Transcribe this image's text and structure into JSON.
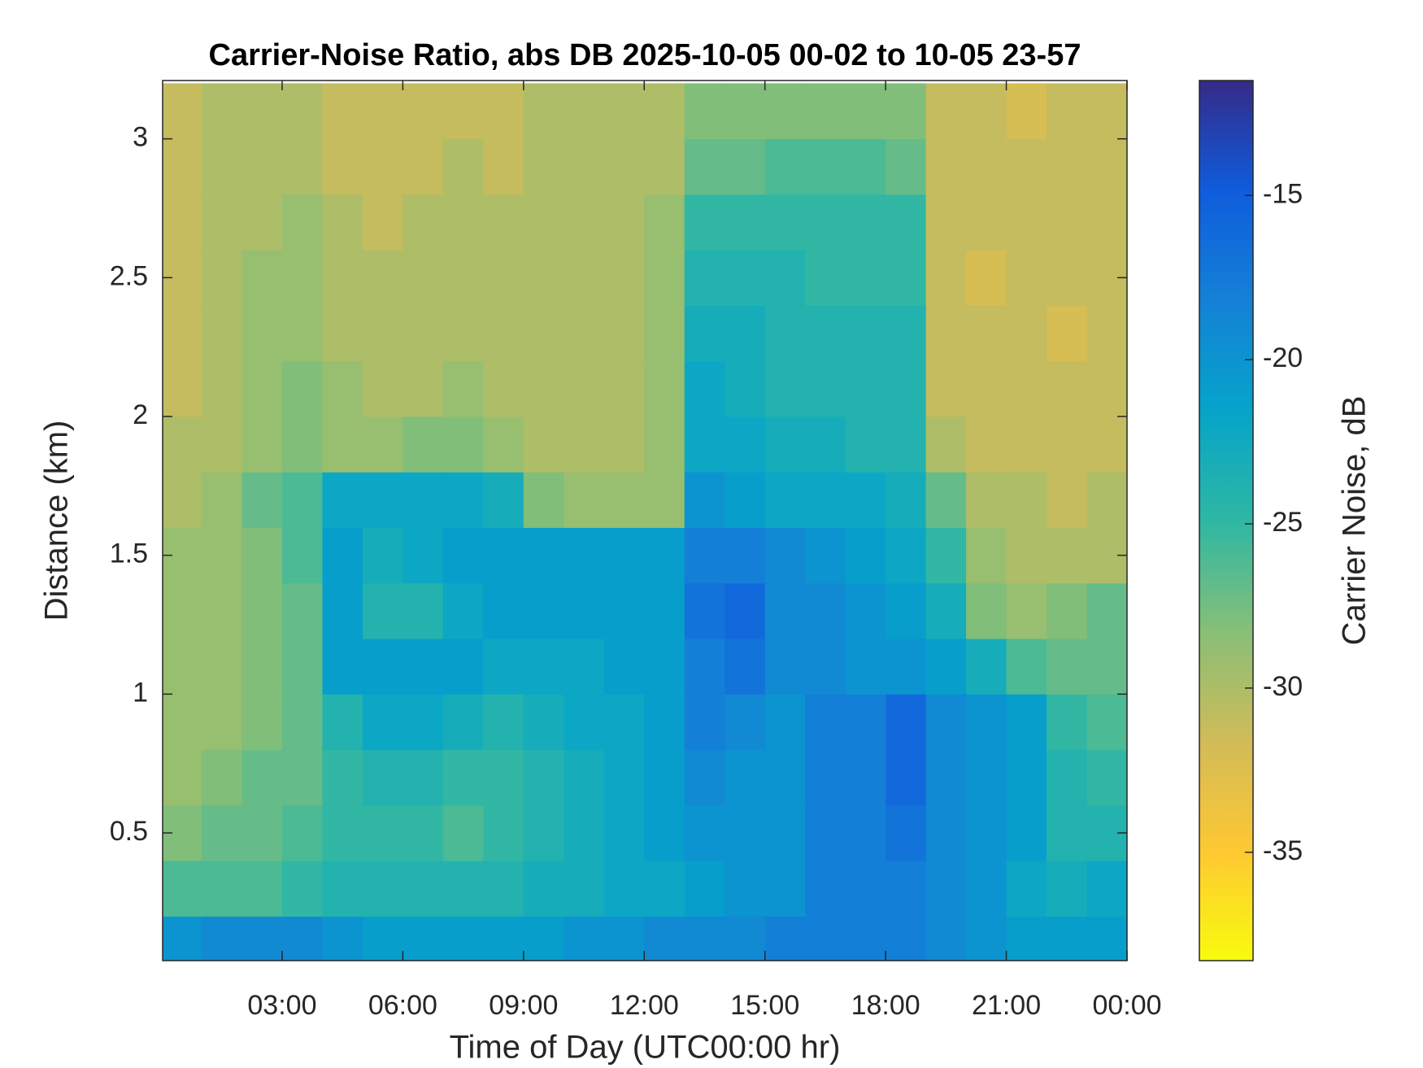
{
  "chart_data": {
    "type": "heatmap",
    "title": "Carrier-Noise Ratio, abs DB 2025-10-05 00-02 to 10-05 23-57",
    "x_label": "Time of Day (UTC00:00 hr)",
    "y_label": "Distance (km)",
    "colorbar_label": "Carrier Noise, dB",
    "colormap": "parula",
    "colormap_reversed": true,
    "clim": [
      -38.3,
      -11.5
    ],
    "cticks": [
      -15,
      -20,
      -25,
      -30,
      -35
    ],
    "xlim": [
      0.03,
      24
    ],
    "xticks": [
      {
        "value": 3,
        "label": "03:00"
      },
      {
        "value": 6,
        "label": "06:00"
      },
      {
        "value": 9,
        "label": "09:00"
      },
      {
        "value": 12,
        "label": "12:00"
      },
      {
        "value": 15,
        "label": "15:00"
      },
      {
        "value": 18,
        "label": "18:00"
      },
      {
        "value": 21,
        "label": "21:00"
      },
      {
        "value": 24,
        "label": "00:00"
      }
    ],
    "ylim": [
      0.04,
      3.21
    ],
    "yticks": [
      0.5,
      1,
      1.5,
      2,
      2.5,
      3
    ],
    "x": [
      0.5,
      1.5,
      2.5,
      3.5,
      4.5,
      5.5,
      6.5,
      7.5,
      8.5,
      9.5,
      10.5,
      11.5,
      12.5,
      13.5,
      14.5,
      15.5,
      16.5,
      17.5,
      18.5,
      19.5,
      20.5,
      21.5,
      22.5,
      23.5
    ],
    "y": [
      0.1,
      0.3,
      0.5,
      0.7,
      0.9,
      1.1,
      1.3,
      1.5,
      1.7,
      1.9,
      2.1,
      2.3,
      2.5,
      2.7,
      2.9,
      3.1
    ],
    "z": [
      [
        -20,
        -19,
        -19,
        -19,
        -20,
        -21,
        -21,
        -21,
        -21,
        -21,
        -20,
        -20,
        -19,
        -19,
        -19,
        -18,
        -18,
        -18,
        -18,
        -19,
        -20,
        -21,
        -21,
        -21
      ],
      [
        -26,
        -26,
        -26,
        -25,
        -24,
        -24,
        -24,
        -24,
        -24,
        -23,
        -23,
        -22,
        -22,
        -21,
        -20,
        -20,
        -18,
        -18,
        -18,
        -19,
        -20,
        -22,
        -23,
        -22
      ],
      [
        -28,
        -27,
        -27,
        -26,
        -25,
        -25,
        -25,
        -26,
        -25,
        -24,
        -23,
        -22,
        -21,
        -20,
        -20,
        -20,
        -18,
        -18,
        -17,
        -19,
        -20,
        -21,
        -24,
        -24
      ],
      [
        -29,
        -28,
        -27,
        -27,
        -25,
        -24,
        -24,
        -25,
        -25,
        -24,
        -23,
        -22,
        -21,
        -19,
        -20,
        -20,
        -18,
        -18,
        -16,
        -19,
        -20,
        -21,
        -24,
        -25
      ],
      [
        -29,
        -29,
        -28,
        -27,
        -24,
        -22,
        -22,
        -23,
        -24,
        -23,
        -22,
        -22,
        -21,
        -18,
        -19,
        -20,
        -18,
        -18,
        -16,
        -19,
        -20,
        -21,
        -25,
        -26
      ],
      [
        -29,
        -29,
        -28,
        -27,
        -21,
        -21,
        -21,
        -21,
        -22,
        -22,
        -22,
        -21,
        -21,
        -18,
        -17,
        -19,
        -19,
        -20,
        -20,
        -21,
        -23,
        -26,
        -27,
        -27
      ],
      [
        -29,
        -29,
        -28,
        -27,
        -21,
        -24,
        -24,
        -22,
        -21,
        -21,
        -21,
        -21,
        -21,
        -17,
        -16,
        -19,
        -19,
        -20,
        -21,
        -23,
        -28,
        -29,
        -28,
        -27
      ],
      [
        -29,
        -29,
        -28,
        -26,
        -21,
        -23,
        -22,
        -21,
        -21,
        -21,
        -21,
        -21,
        -21,
        -18,
        -18,
        -19,
        -20,
        -21,
        -22,
        -25,
        -29,
        -30,
        -30,
        -30
      ],
      [
        -30,
        -29,
        -27,
        -26,
        -22,
        -22,
        -22,
        -22,
        -23,
        -28,
        -29,
        -29,
        -29,
        -20,
        -21,
        -22,
        -22,
        -22,
        -23,
        -27,
        -30,
        -30,
        -31,
        -30
      ],
      [
        -30,
        -30,
        -29,
        -28,
        -29,
        -29,
        -28,
        -28,
        -29,
        -30,
        -30,
        -30,
        -29,
        -22,
        -22,
        -23,
        -23,
        -24,
        -24,
        -30,
        -31,
        -31,
        -31,
        -31
      ],
      [
        -31,
        -30,
        -29,
        -28,
        -29,
        -30,
        -30,
        -29,
        -30,
        -30,
        -30,
        -30,
        -29,
        -22,
        -23,
        -24,
        -24,
        -24,
        -24,
        -31,
        -31,
        -31,
        -31,
        -31
      ],
      [
        -31,
        -30,
        -29,
        -29,
        -30,
        -30,
        -30,
        -30,
        -30,
        -30,
        -30,
        -30,
        -29,
        -23,
        -23,
        -24,
        -24,
        -24,
        -24,
        -31,
        -31,
        -31,
        -32,
        -31
      ],
      [
        -31,
        -30,
        -29,
        -29,
        -30,
        -30,
        -30,
        -30,
        -30,
        -30,
        -30,
        -30,
        -29,
        -24,
        -24,
        -24,
        -25,
        -25,
        -25,
        -31,
        -32,
        -31,
        -31,
        -31
      ],
      [
        -31,
        -30,
        -30,
        -29,
        -30,
        -31,
        -30,
        -30,
        -30,
        -30,
        -30,
        -30,
        -29,
        -25,
        -25,
        -25,
        -25,
        -25,
        -25,
        -31,
        -31,
        -31,
        -31,
        -31
      ],
      [
        -31,
        -30,
        -30,
        -30,
        -31,
        -31,
        -31,
        -30,
        -31,
        -30,
        -30,
        -30,
        -30,
        -27,
        -27,
        -26,
        -26,
        -26,
        -27,
        -31,
        -31,
        -31,
        -31,
        -31
      ],
      [
        -31,
        -30,
        -30,
        -30,
        -31,
        -31,
        -31,
        -31,
        -31,
        -30,
        -30,
        -30,
        -30,
        -28,
        -28,
        -28,
        -28,
        -28,
        -28,
        -31,
        -31,
        -32,
        -31,
        -31
      ]
    ]
  }
}
